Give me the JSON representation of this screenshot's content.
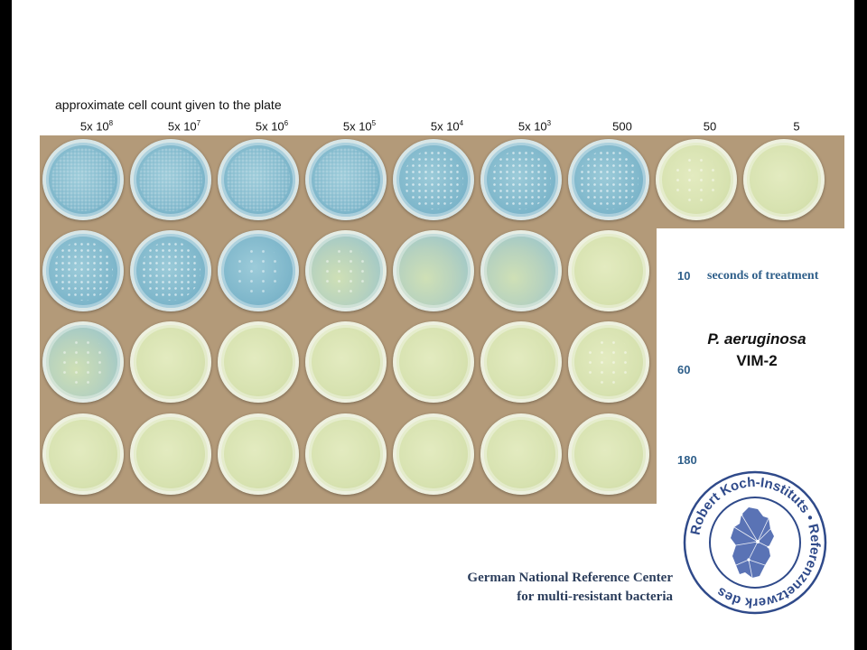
{
  "heading": "approximate cell count given to the plate",
  "columns": [
    {
      "base": "5x 10",
      "exp": "8"
    },
    {
      "base": "5x 10",
      "exp": "7"
    },
    {
      "base": "5x 10",
      "exp": "6"
    },
    {
      "base": "5x 10",
      "exp": "5"
    },
    {
      "base": "5x 10",
      "exp": "4"
    },
    {
      "base": "5x 10",
      "exp": "3"
    },
    {
      "base": "500",
      "exp": ""
    },
    {
      "base": "50",
      "exp": ""
    },
    {
      "base": "5",
      "exp": ""
    }
  ],
  "rows": [
    {
      "label": ""
    },
    {
      "label": "10"
    },
    {
      "label": "60"
    },
    {
      "label": "180"
    }
  ],
  "treatment_label": "seconds of treatment",
  "organism": {
    "species": "P. aeruginosa",
    "strain": "VIM-2"
  },
  "footer": {
    "line1": "German National Reference Center",
    "line2": "for multi-resistant bacteria"
  },
  "logo": {
    "ring_text": "Robert Koch-Instituts • Referenznetzwerk des",
    "icon": "germany-network-map-icon",
    "color": "#2f4a8a"
  },
  "plate_colors": {
    "blue": "#7fb7cb",
    "yellow": "#d7e2b0"
  }
}
